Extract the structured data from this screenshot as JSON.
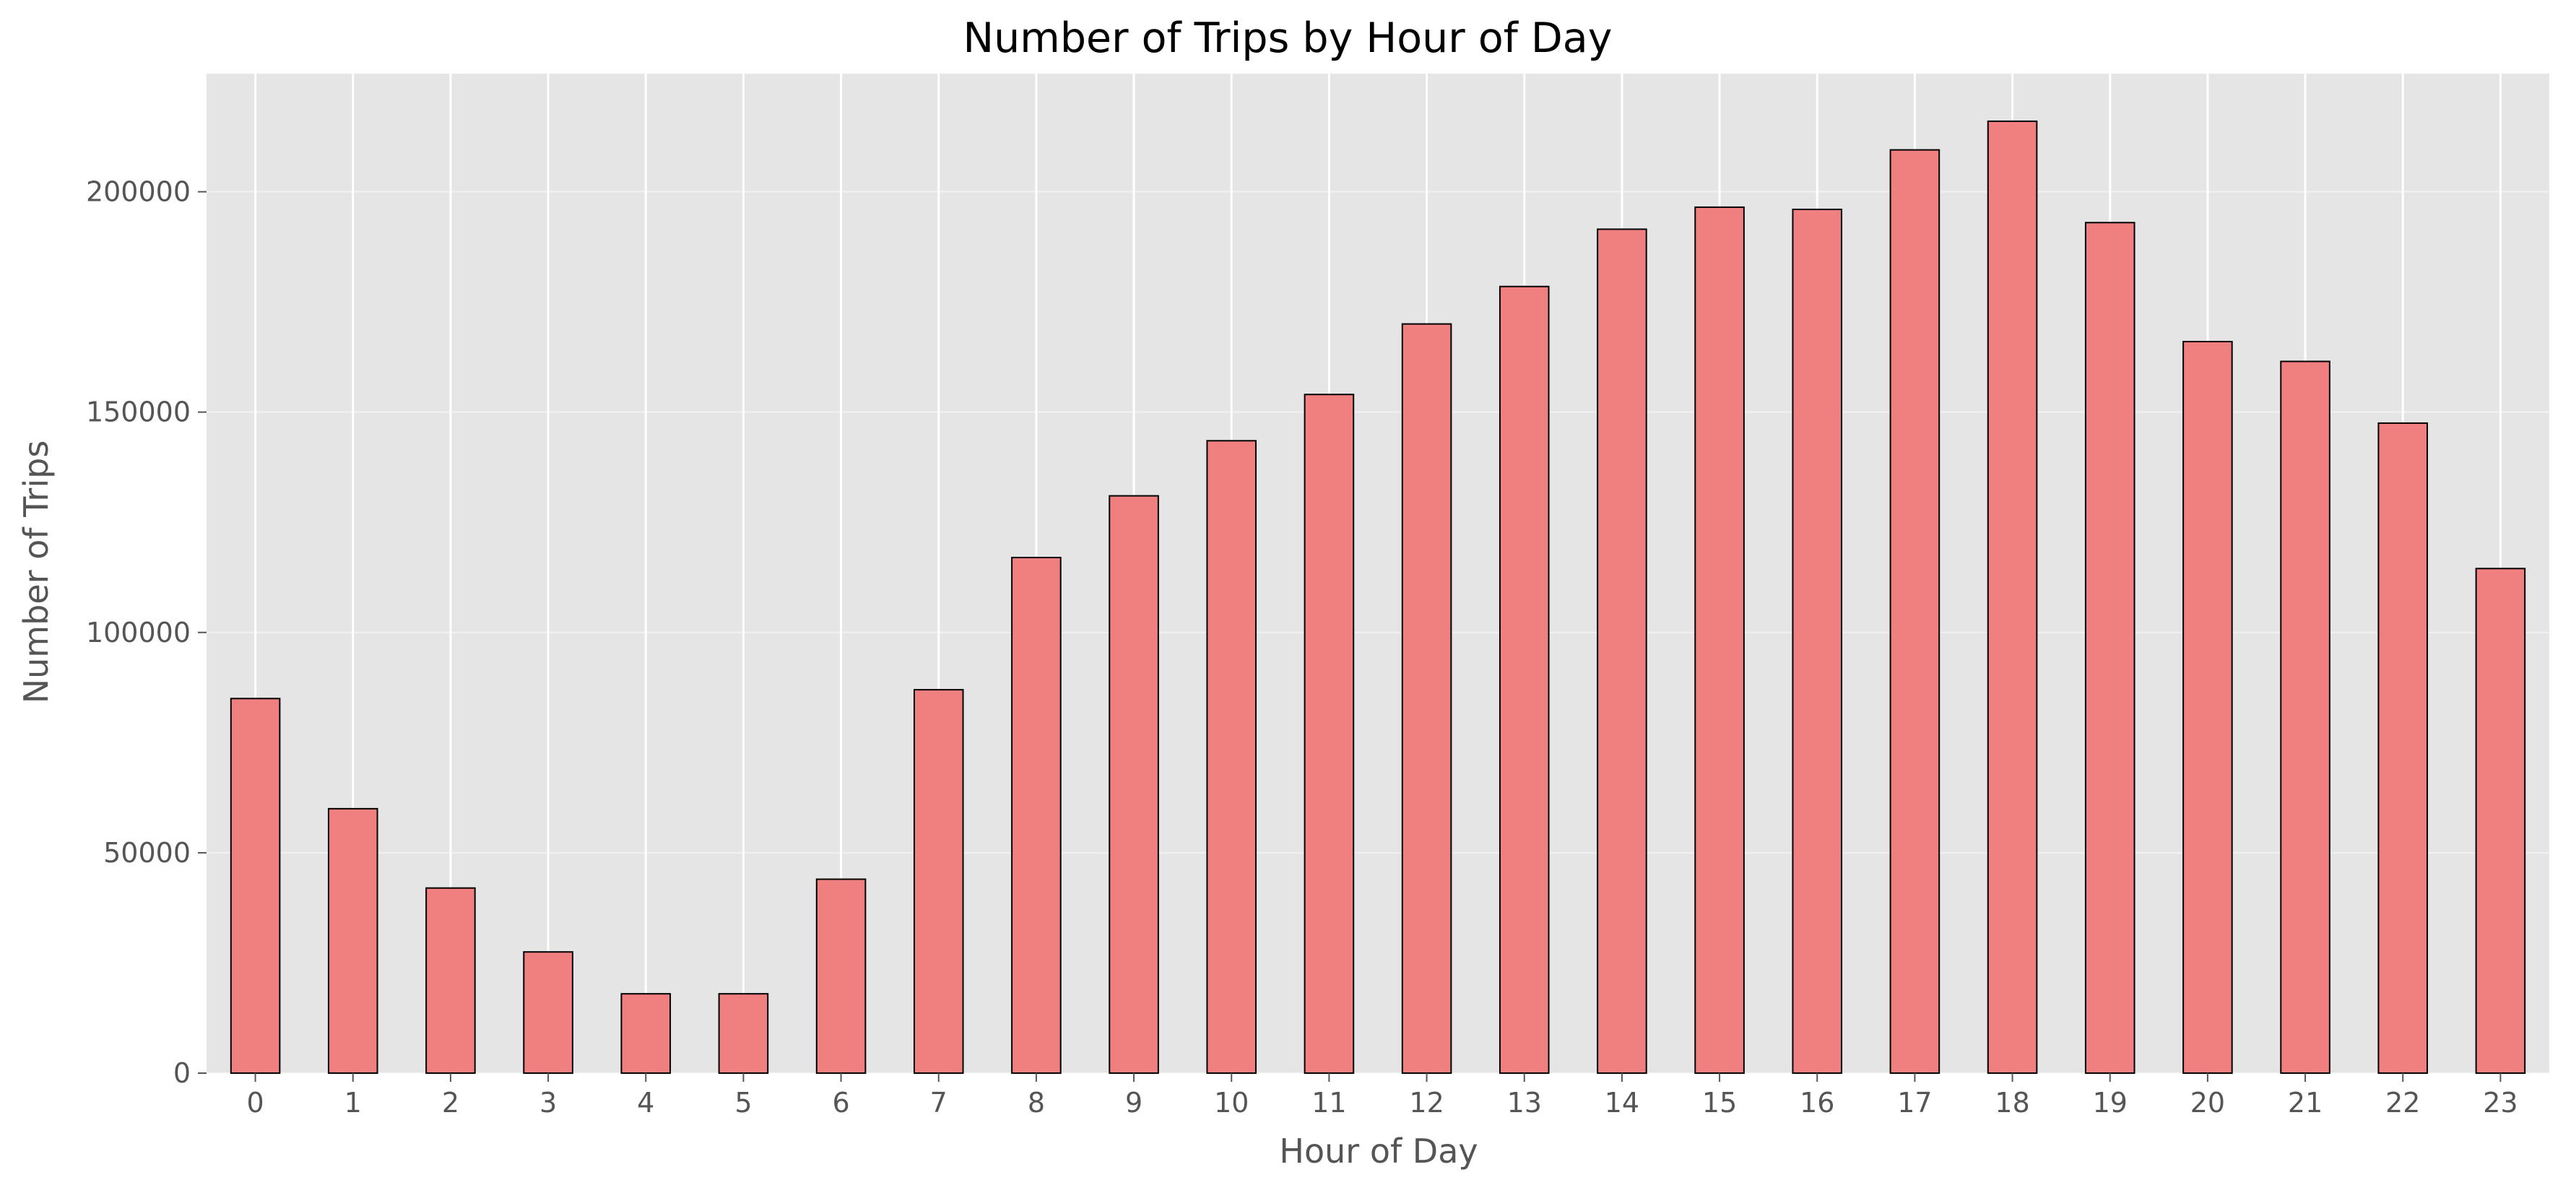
{
  "chart_data": {
    "type": "bar",
    "title": "Number of Trips by Hour of Day",
    "xlabel": "Hour of Day",
    "ylabel": "Number of Trips",
    "categories": [
      "0",
      "1",
      "2",
      "3",
      "4",
      "5",
      "6",
      "7",
      "8",
      "9",
      "10",
      "11",
      "12",
      "13",
      "14",
      "15",
      "16",
      "17",
      "18",
      "19",
      "20",
      "21",
      "22",
      "23"
    ],
    "values": [
      85000,
      60000,
      42000,
      27500,
      18000,
      18000,
      44000,
      87000,
      117000,
      131000,
      143500,
      154000,
      170000,
      178500,
      191500,
      196500,
      196000,
      209500,
      216000,
      193000,
      166000,
      161500,
      147500,
      114500
    ],
    "ylim": [
      0,
      226800
    ],
    "yticks": [
      0,
      50000,
      100000,
      150000,
      200000
    ],
    "grid": true,
    "colors": {
      "bar_fill": "#f08080",
      "bar_edge": "#000000",
      "plot_background": "#e5e5e5",
      "grid": "#ffffff"
    }
  }
}
